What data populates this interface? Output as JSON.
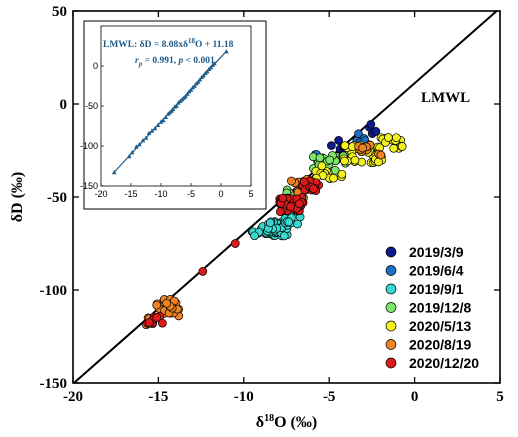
{
  "chart_data": [
    {
      "type": "scatter",
      "xlabel": "δ18O (‰)",
      "ylabel": "δD (‰)",
      "xlim": [
        -20,
        5
      ],
      "ylim": [
        -150,
        50
      ],
      "xticks": [
        "-20",
        "-15",
        "-10",
        "-5",
        "0",
        "5"
      ],
      "yticks": [
        "-150",
        "-100",
        "-50",
        "0",
        "50"
      ],
      "line_label": "LMWL",
      "lmwl": {
        "slope": 8.08,
        "intercept": 11.18
      },
      "legend_position": "lower-right",
      "series": [
        {
          "name": "2019/3/9",
          "color": "#0b1a8c",
          "clusters": [
            [
              -4.6,
              -22,
              0.6,
              3,
              6
            ],
            [
              -2.3,
              -13,
              0.4,
              3,
              4
            ]
          ]
        },
        {
          "name": "2019/6/4",
          "color": "#1e6fc8",
          "clusters": [
            [
              -5.6,
              -29,
              0.5,
              3,
              6
            ],
            [
              -3.3,
              -18,
              0.5,
              3,
              5
            ]
          ]
        },
        {
          "name": "2019/9/1",
          "color": "#37d8d0",
          "clusters": [
            [
              -8.2,
              -67,
              0.8,
              4,
              45
            ],
            [
              -9.3,
              -70,
              0.3,
              2,
              6
            ],
            [
              -7.2,
              -62,
              0.5,
              3,
              10
            ]
          ]
        },
        {
          "name": "2019/12/8",
          "color": "#7ee56a",
          "clusters": [
            [
              -5.0,
              -32,
              1.0,
              5,
              22
            ],
            [
              -7.0,
              -50,
              0.6,
              4,
              8
            ]
          ]
        },
        {
          "name": "2020/5/13",
          "color": "#f4f21d",
          "clusters": [
            [
              -3.0,
              -27,
              1.2,
              5,
              40
            ],
            [
              -1.3,
              -21,
              0.8,
              3,
              15
            ],
            [
              -5.0,
              -37,
              0.8,
              4,
              14
            ]
          ]
        },
        {
          "name": "2020/8/19",
          "color": "#ef8222",
          "clusters": [
            [
              -14.5,
              -110,
              0.7,
              5,
              25
            ],
            [
              -15.5,
              -117,
              0.3,
              2,
              4
            ],
            [
              -2.5,
              -25,
              0.8,
              3,
              12
            ],
            [
              -6.5,
              -44,
              0.8,
              4,
              15
            ]
          ]
        },
        {
          "name": "2020/12/20",
          "color": "#dd1a1a",
          "clusters": [
            [
              -7.2,
              -54,
              0.7,
              4,
              45
            ],
            [
              -6.1,
              -44,
              0.5,
              3,
              20
            ],
            [
              -15.2,
              -116,
              0.5,
              2,
              8
            ]
          ],
          "points": [
            [
              -12.4,
              -90
            ],
            [
              -10.5,
              -75
            ]
          ]
        }
      ],
      "inset": {
        "type": "scatter",
        "xlim": [
          -20,
          5
        ],
        "ylim": [
          -150,
          50
        ],
        "xticks": [
          "-20",
          "-15",
          "-10",
          "-5",
          "0",
          "5"
        ],
        "yticks": [
          "-150",
          "-100",
          "-50",
          "0"
        ],
        "equation": "LMWL: δD = 8.08xδ18O + 11.18",
        "stats": "rp = 0.991, p < 0.001",
        "color": "#1f5c8a",
        "points": [
          [
            -17.8,
            -133
          ],
          [
            -15.3,
            -113
          ],
          [
            -14.8,
            -108
          ],
          [
            -14.1,
            -101
          ],
          [
            -13.6,
            -98
          ],
          [
            -13.0,
            -93
          ],
          [
            -12.5,
            -90
          ],
          [
            -12.0,
            -84
          ],
          [
            -11.5,
            -81
          ],
          [
            -11.0,
            -78
          ],
          [
            -10.5,
            -74
          ],
          [
            -10.0,
            -70
          ],
          [
            -9.6,
            -68
          ],
          [
            -9.2,
            -64
          ],
          [
            -8.8,
            -60
          ],
          [
            -8.5,
            -58
          ],
          [
            -8.2,
            -56
          ],
          [
            -8.0,
            -54
          ],
          [
            -7.7,
            -51
          ],
          [
            -7.4,
            -50
          ],
          [
            -7.1,
            -46
          ],
          [
            -6.8,
            -44
          ],
          [
            -6.5,
            -42
          ],
          [
            -6.2,
            -40
          ],
          [
            -5.9,
            -38
          ],
          [
            -5.6,
            -35
          ],
          [
            -5.3,
            -32
          ],
          [
            -5.0,
            -30
          ],
          [
            -4.7,
            -27
          ],
          [
            -4.4,
            -25
          ],
          [
            -4.1,
            -22
          ],
          [
            -3.8,
            -20
          ],
          [
            -3.5,
            -17
          ],
          [
            -3.2,
            -14
          ],
          [
            -2.9,
            -12
          ],
          [
            -2.6,
            -9
          ],
          [
            -2.3,
            -7
          ],
          [
            -2.0,
            -4
          ],
          [
            -1.7,
            -2
          ],
          [
            -1.4,
            1
          ],
          [
            -1.1,
            3
          ],
          [
            0.9,
            18
          ]
        ]
      }
    }
  ]
}
